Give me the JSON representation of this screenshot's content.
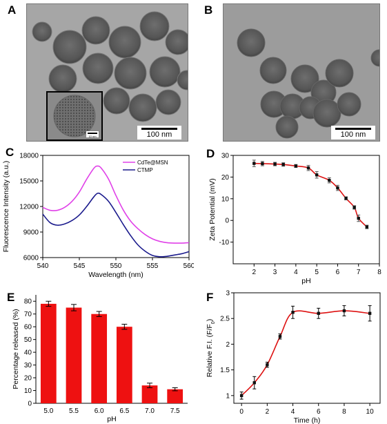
{
  "panels": {
    "A": {
      "letter": "A",
      "scale_bar": "100 nm",
      "inset_scale_bar": "10 nm"
    },
    "B": {
      "letter": "B",
      "scale_bar": "100 nm"
    },
    "C": {
      "letter": "C"
    },
    "D": {
      "letter": "D"
    },
    "E": {
      "letter": "E"
    },
    "F": {
      "letter": "F"
    }
  },
  "chart_data": [
    {
      "id": "C",
      "type": "line",
      "xlabel": "Wavelength (nm)",
      "ylabel": "Fluorescence Intensity (a.u.)",
      "xlim": [
        540,
        560
      ],
      "ylim": [
        6000,
        18000
      ],
      "xticks": [
        540,
        545,
        550,
        555,
        560
      ],
      "yticks": [
        6000,
        9000,
        12000,
        15000,
        18000
      ],
      "legend_position": "top-right",
      "series": [
        {
          "name": "CdTe@MSN",
          "color": "#e040e8",
          "x": [
            540,
            541,
            542,
            543,
            544,
            545,
            546,
            547,
            547.5,
            548,
            549,
            550,
            551,
            552,
            553,
            554,
            555,
            556,
            557,
            558,
            559,
            560
          ],
          "y": [
            11900,
            11550,
            11550,
            11900,
            12600,
            13700,
            15200,
            16500,
            16750,
            16500,
            15200,
            13300,
            11600,
            10300,
            9400,
            8700,
            8200,
            7900,
            7750,
            7700,
            7700,
            7750
          ]
        },
        {
          "name": "CTMP",
          "color": "#1a1a8c",
          "x": [
            540,
            541,
            542,
            543,
            544,
            545,
            546,
            547,
            547.5,
            548,
            549,
            550,
            551,
            552,
            553,
            554,
            555,
            556,
            557,
            558,
            559,
            560
          ],
          "y": [
            11100,
            10100,
            9800,
            9950,
            10350,
            11000,
            12000,
            13150,
            13550,
            13400,
            12600,
            11300,
            9900,
            8600,
            7500,
            6750,
            6250,
            6100,
            6150,
            6300,
            6450,
            6700
          ]
        }
      ]
    },
    {
      "id": "D",
      "type": "line",
      "xlabel": "pH",
      "ylabel": "Zeta Potential (mV)",
      "xlim": [
        1,
        8
      ],
      "ylim": [
        -20,
        30
      ],
      "xticks": [
        2,
        3,
        4,
        5,
        6,
        7,
        8
      ],
      "yticks": [
        -10,
        0,
        10,
        20,
        30
      ],
      "series": [
        {
          "name": "",
          "color": "#dd1111",
          "x": [
            2.0,
            2.4,
            3.0,
            3.4,
            4.0,
            4.6,
            5.0,
            5.6,
            6.0,
            6.4,
            6.8,
            7.0,
            7.4
          ],
          "y": [
            26.3,
            26.2,
            26.0,
            25.8,
            25.1,
            24.2,
            21.0,
            18.5,
            15.0,
            10.2,
            6.0,
            1.0,
            -3.0
          ],
          "err": [
            1.5,
            1.0,
            0.8,
            0.8,
            0.7,
            1.2,
            1.5,
            1.2,
            1.2,
            0.7,
            0.8,
            1.5,
            0.8
          ]
        }
      ]
    },
    {
      "id": "E",
      "type": "bar",
      "xlabel": "pH",
      "ylabel": "Percentage released (%)",
      "ylim": [
        0,
        85
      ],
      "yticks": [
        0,
        10,
        20,
        30,
        40,
        50,
        60,
        70,
        80
      ],
      "color": "#ee1111",
      "categories": [
        "5.0",
        "5.5",
        "6.0",
        "6.5",
        "7.0",
        "7.5"
      ],
      "values": [
        78,
        75,
        70,
        60,
        14,
        11
      ],
      "err": [
        2.0,
        2.5,
        2.0,
        2.0,
        1.8,
        1.2
      ]
    },
    {
      "id": "F",
      "type": "line",
      "xlabel": "Time (h)",
      "ylabel": "Relative F.I. (F/F0)",
      "ylabel_main": "Relative F.I. (F/F",
      "ylabel_sub": "0",
      "ylabel_end": ")",
      "xlim": [
        -0.6,
        10.8
      ],
      "ylim": [
        0.85,
        3.0
      ],
      "xticks": [
        0,
        2,
        4,
        6,
        8,
        10
      ],
      "yticks": [
        1.0,
        1.5,
        2.0,
        2.5,
        3.0
      ],
      "series": [
        {
          "name": "",
          "color": "#dd1111",
          "x": [
            0,
            1,
            2,
            3,
            4,
            6,
            8,
            10
          ],
          "y": [
            1.0,
            1.25,
            1.6,
            2.15,
            2.62,
            2.6,
            2.65,
            2.6
          ],
          "err": [
            0.07,
            0.12,
            0.05,
            0.05,
            0.12,
            0.1,
            0.1,
            0.15
          ]
        }
      ]
    }
  ]
}
